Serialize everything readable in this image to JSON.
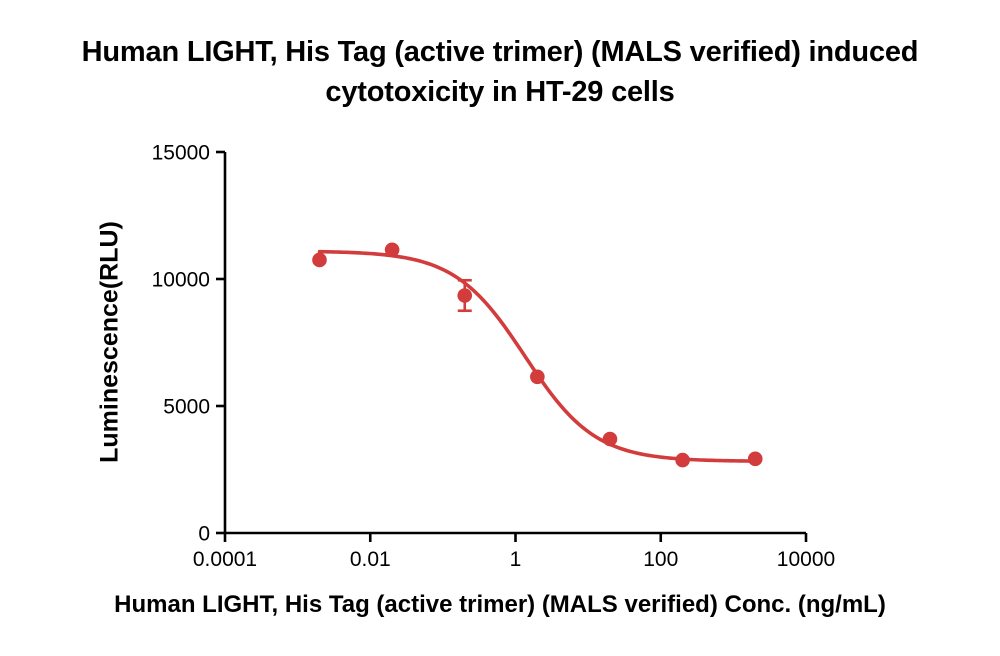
{
  "page": {
    "background": "#ffffff"
  },
  "chart_data": {
    "type": "scatter",
    "title_line1": "Human LIGHT, His Tag (active trimer) (MALS verified) induced",
    "title_line2": "cytotoxicity in HT-29 cells",
    "xlabel": "Human LIGHT, His Tag (active trimer) (MALS verified) Conc. (ng/mL)",
    "ylabel": "Luminescence(RLU)",
    "x_scale": "log10",
    "xlim_log": [
      -4,
      4
    ],
    "ylim": [
      0,
      15000
    ],
    "x_ticks": [
      0.0001,
      0.01,
      1,
      100,
      10000
    ],
    "x_tick_labels": [
      "0.0001",
      "0.01",
      "1",
      "100",
      "10000"
    ],
    "y_ticks": [
      0,
      5000,
      10000,
      15000
    ],
    "y_tick_labels": [
      "0",
      "5000",
      "10000",
      "15000"
    ],
    "grid": false,
    "legend": "none",
    "series": [
      {
        "name": "Human LIGHT, His Tag (active trimer) (MALS verified)",
        "x": [
          0.002,
          0.02,
          0.2,
          2,
          20,
          200,
          2000
        ],
        "y": [
          10750,
          11150,
          9350,
          6150,
          3700,
          2870,
          2920
        ],
        "y_err": [
          0,
          0,
          600,
          0,
          0,
          0,
          0
        ]
      }
    ],
    "fit": {
      "model": "4PL-dose-response",
      "top": 11100,
      "bottom": 2820,
      "ec50": 1.35,
      "hill": 0.9,
      "x_start": 0.002,
      "x_end": 2000
    },
    "colors": {
      "curve": "#d23c3c",
      "marker": "#d23c3c",
      "axis": "#000000",
      "text": "#000000"
    }
  }
}
